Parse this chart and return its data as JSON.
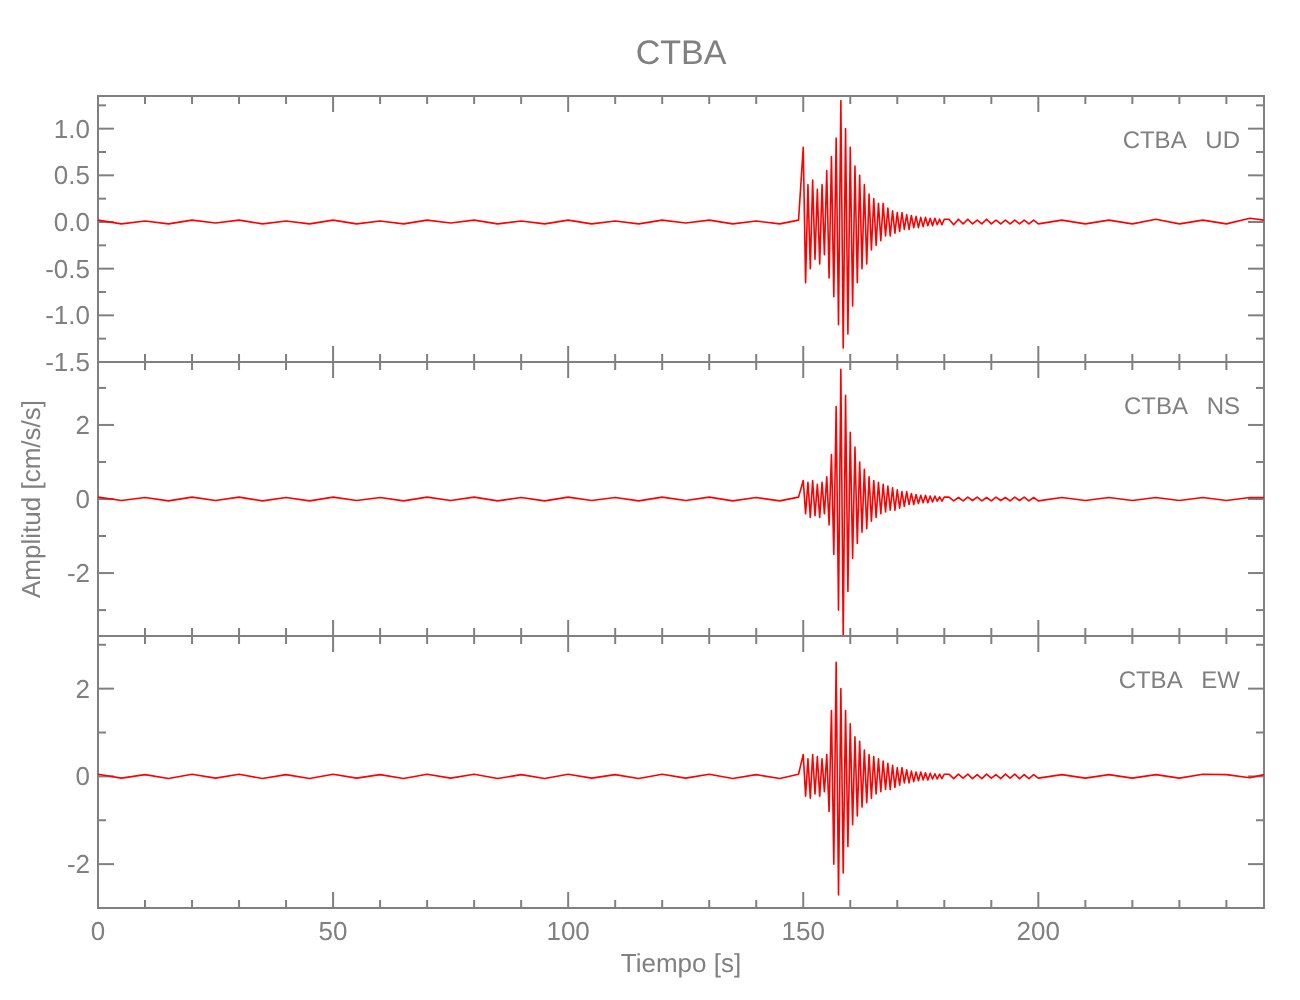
{
  "chart_data": [
    {
      "type": "line",
      "title": "CTBA",
      "tick_labels": "y",
      "xlim": [
        0,
        248
      ],
      "ylim": [
        -1.5,
        1.35
      ],
      "xticks": [
        0,
        {
          "value": 10,
          "label": null
        },
        {
          "value": 20,
          "label": null
        },
        {
          "value": 30,
          "label": null
        },
        {
          "value": 40,
          "label": null
        },
        50,
        {
          "value": 60,
          "label": null
        },
        {
          "value": 70,
          "label": null
        },
        {
          "value": 80,
          "label": null
        },
        {
          "value": 90,
          "label": null
        },
        100,
        {
          "value": 110,
          "label": null
        },
        {
          "value": 120,
          "label": null
        },
        {
          "value": 130,
          "label": null
        },
        {
          "value": 140,
          "label": null
        },
        150,
        {
          "value": 160,
          "label": null
        },
        {
          "value": 170,
          "label": null
        },
        {
          "value": 180,
          "label": null
        },
        {
          "value": 190,
          "label": null
        },
        200,
        {
          "value": 210,
          "label": null
        },
        {
          "value": 220,
          "label": null
        },
        {
          "value": 230,
          "label": null
        },
        {
          "value": 240,
          "label": null
        }
      ],
      "yticks": [
        {
          "value": -1.5,
          "label": "-1.5"
        },
        {
          "value": -1.25,
          "label": null
        },
        {
          "value": -1,
          "label": "-1.0"
        },
        {
          "value": -0.75,
          "label": null
        },
        {
          "value": -0.5,
          "label": "-0.5"
        },
        {
          "value": -0.25,
          "label": null
        },
        {
          "value": 0,
          "label": "0.0"
        },
        {
          "value": 0.25,
          "label": null
        },
        {
          "value": 0.5,
          "label": "0.5"
        },
        {
          "value": 0.75,
          "label": null
        },
        {
          "value": 1,
          "label": "1.0"
        },
        {
          "value": 1.25,
          "label": null
        }
      ],
      "x": [
        0,
        5,
        10,
        15,
        20,
        25,
        30,
        35,
        40,
        45,
        50,
        55,
        60,
        65,
        70,
        75,
        80,
        85,
        90,
        95,
        100,
        105,
        110,
        115,
        120,
        125,
        130,
        135,
        140,
        145,
        149,
        150,
        150.5,
        151,
        151.5,
        152,
        152.5,
        153,
        153.5,
        154,
        154.5,
        155,
        155.5,
        156,
        156.5,
        157,
        157.5,
        158,
        158.5,
        159,
        159.5,
        160,
        160.5,
        161,
        161.5,
        162,
        162.5,
        163,
        163.5,
        164,
        164.5,
        165,
        165.5,
        166,
        166.5,
        167,
        167.5,
        168,
        168.5,
        169,
        169.5,
        170,
        170.5,
        171,
        171.5,
        172,
        172.5,
        173,
        173.5,
        174,
        174.5,
        175,
        175.5,
        176,
        176.5,
        177,
        177.5,
        178,
        178.5,
        179,
        179.5,
        180,
        181,
        182,
        183,
        184,
        185,
        186,
        187,
        188,
        189,
        190,
        191,
        192,
        193,
        194,
        195,
        196,
        197,
        198,
        199,
        200,
        205,
        210,
        215,
        220,
        225,
        230,
        235,
        240,
        245,
        248
      ],
      "series": [
        {
          "name": "CTBA   UD",
          "color": "#ff0000",
          "values": [
            0.02,
            -0.02,
            0.01,
            -0.02,
            0.02,
            -0.01,
            0.02,
            -0.02,
            0.01,
            -0.02,
            0.02,
            -0.02,
            0.01,
            -0.02,
            0.02,
            -0.01,
            0.02,
            -0.02,
            0.01,
            -0.02,
            0.02,
            -0.02,
            0.01,
            -0.02,
            0.02,
            -0.01,
            0.02,
            -0.02,
            0.01,
            -0.02,
            0.02,
            0.8,
            -0.65,
            0.4,
            -0.5,
            0.45,
            -0.4,
            0.35,
            -0.45,
            0.4,
            -0.35,
            0.55,
            -0.6,
            0.7,
            -0.8,
            0.9,
            -1.1,
            1.3,
            -1.35,
            1.0,
            -1.2,
            0.8,
            -0.9,
            0.6,
            -0.65,
            0.5,
            -0.5,
            0.4,
            -0.45,
            0.3,
            -0.3,
            0.25,
            -0.25,
            0.2,
            -0.2,
            0.2,
            -0.15,
            0.15,
            -0.15,
            0.12,
            -0.12,
            0.1,
            -0.1,
            0.1,
            -0.08,
            0.08,
            -0.08,
            0.07,
            -0.06,
            0.06,
            -0.06,
            0.05,
            -0.05,
            0.05,
            -0.04,
            0.04,
            -0.04,
            0.04,
            -0.03,
            0.03,
            -0.03,
            0.03,
            0.03,
            -0.03,
            0.03,
            -0.02,
            0.03,
            -0.02,
            0.02,
            -0.02,
            0.03,
            -0.02,
            0.02,
            -0.02,
            0.02,
            -0.02,
            0.02,
            -0.02,
            0.02,
            -0.02,
            0.02,
            -0.02,
            0.02,
            -0.02,
            0.02,
            -0.02,
            0.03,
            -0.02,
            0.02,
            -0.02,
            0.04,
            0.02
          ]
        }
      ]
    },
    {
      "type": "line",
      "ylabel": "Amplitud [cm/s/s]",
      "tick_labels": "y",
      "xlim": [
        0,
        248
      ],
      "ylim": [
        -3.7,
        3.7
      ],
      "xticks": [
        0,
        {
          "value": 10,
          "label": null
        },
        {
          "value": 20,
          "label": null
        },
        {
          "value": 30,
          "label": null
        },
        {
          "value": 40,
          "label": null
        },
        50,
        {
          "value": 60,
          "label": null
        },
        {
          "value": 70,
          "label": null
        },
        {
          "value": 80,
          "label": null
        },
        {
          "value": 90,
          "label": null
        },
        100,
        {
          "value": 110,
          "label": null
        },
        {
          "value": 120,
          "label": null
        },
        {
          "value": 130,
          "label": null
        },
        {
          "value": 140,
          "label": null
        },
        150,
        {
          "value": 160,
          "label": null
        },
        {
          "value": 170,
          "label": null
        },
        {
          "value": 180,
          "label": null
        },
        {
          "value": 190,
          "label": null
        },
        200,
        {
          "value": 210,
          "label": null
        },
        {
          "value": 220,
          "label": null
        },
        {
          "value": 230,
          "label": null
        },
        {
          "value": 240,
          "label": null
        }
      ],
      "yticks": [
        {
          "value": -3,
          "label": null
        },
        -2,
        {
          "value": -1,
          "label": null
        },
        0,
        {
          "value": 1,
          "label": null
        },
        2,
        {
          "value": 3,
          "label": null
        }
      ],
      "x": [
        0,
        5,
        10,
        15,
        20,
        25,
        30,
        35,
        40,
        45,
        50,
        55,
        60,
        65,
        70,
        75,
        80,
        85,
        90,
        95,
        100,
        105,
        110,
        115,
        120,
        125,
        130,
        135,
        140,
        145,
        149,
        150,
        150.5,
        151,
        151.5,
        152,
        152.5,
        153,
        153.5,
        154,
        154.5,
        155,
        155.5,
        156,
        156.5,
        157,
        157.5,
        158,
        158.5,
        159,
        159.5,
        160,
        160.5,
        161,
        161.5,
        162,
        162.5,
        163,
        163.5,
        164,
        164.5,
        165,
        165.5,
        166,
        166.5,
        167,
        167.5,
        168,
        168.5,
        169,
        169.5,
        170,
        170.5,
        171,
        171.5,
        172,
        172.5,
        173,
        173.5,
        174,
        174.5,
        175,
        175.5,
        176,
        176.5,
        177,
        177.5,
        178,
        178.5,
        179,
        179.5,
        180,
        181,
        182,
        183,
        184,
        185,
        186,
        187,
        188,
        189,
        190,
        191,
        192,
        193,
        194,
        195,
        196,
        197,
        198,
        199,
        200,
        205,
        210,
        215,
        220,
        225,
        230,
        235,
        240,
        245,
        248
      ],
      "series": [
        {
          "name": "CTBA   NS",
          "color": "#ff0000",
          "values": [
            0.05,
            -0.04,
            0.04,
            -0.05,
            0.05,
            -0.04,
            0.05,
            -0.05,
            0.04,
            -0.05,
            0.05,
            -0.04,
            0.04,
            -0.05,
            0.05,
            -0.04,
            0.05,
            -0.05,
            0.04,
            -0.05,
            0.05,
            -0.04,
            0.04,
            -0.05,
            0.05,
            -0.04,
            0.05,
            -0.05,
            0.04,
            -0.05,
            0.05,
            0.5,
            -0.4,
            0.45,
            -0.5,
            0.5,
            -0.45,
            0.4,
            -0.5,
            0.45,
            -0.4,
            0.6,
            -0.7,
            1.2,
            -1.5,
            2.5,
            -3.0,
            3.5,
            -3.7,
            2.8,
            -2.5,
            1.8,
            -1.6,
            1.4,
            -1.2,
            1.0,
            -0.9,
            0.8,
            -0.8,
            0.6,
            -0.6,
            0.5,
            -0.5,
            0.45,
            -0.4,
            0.4,
            -0.35,
            0.35,
            -0.3,
            0.3,
            -0.3,
            0.25,
            -0.25,
            0.2,
            -0.2,
            0.2,
            -0.15,
            0.15,
            -0.15,
            0.12,
            -0.12,
            0.1,
            -0.1,
            0.1,
            -0.1,
            0.08,
            -0.08,
            0.08,
            -0.06,
            0.06,
            -0.06,
            0.05,
            0.05,
            -0.05,
            0.04,
            -0.05,
            0.05,
            -0.04,
            0.05,
            -0.05,
            0.04,
            -0.05,
            0.05,
            -0.04,
            0.04,
            -0.05,
            0.05,
            -0.04,
            0.05,
            -0.05,
            0.04,
            -0.05,
            0.04,
            -0.04,
            0.04,
            -0.04,
            0.04,
            -0.04,
            0.04,
            -0.04,
            0.04,
            0.04
          ]
        }
      ]
    },
    {
      "type": "line",
      "xlabel": "Tiempo [s]",
      "xlim": [
        0,
        248
      ],
      "ylim": [
        -3,
        3.2
      ],
      "xticks": [
        0,
        {
          "value": 10,
          "label": null
        },
        {
          "value": 20,
          "label": null
        },
        {
          "value": 30,
          "label": null
        },
        {
          "value": 40,
          "label": null
        },
        50,
        {
          "value": 60,
          "label": null
        },
        {
          "value": 70,
          "label": null
        },
        {
          "value": 80,
          "label": null
        },
        {
          "value": 90,
          "label": null
        },
        100,
        {
          "value": 110,
          "label": null
        },
        {
          "value": 120,
          "label": null
        },
        {
          "value": 130,
          "label": null
        },
        {
          "value": 140,
          "label": null
        },
        150,
        {
          "value": 160,
          "label": null
        },
        {
          "value": 170,
          "label": null
        },
        {
          "value": 180,
          "label": null
        },
        {
          "value": 190,
          "label": null
        },
        200,
        {
          "value": 210,
          "label": null
        },
        {
          "value": 220,
          "label": null
        },
        {
          "value": 230,
          "label": null
        },
        {
          "value": 240,
          "label": null
        }
      ],
      "yticks": [
        -2,
        {
          "value": -1,
          "label": null
        },
        0,
        {
          "value": 1,
          "label": null
        },
        2,
        {
          "value": 3,
          "label": null
        }
      ],
      "x": [
        0,
        5,
        10,
        15,
        20,
        25,
        30,
        35,
        40,
        45,
        50,
        55,
        60,
        65,
        70,
        75,
        80,
        85,
        90,
        95,
        100,
        105,
        110,
        115,
        120,
        125,
        130,
        135,
        140,
        145,
        149,
        150,
        150.5,
        151,
        151.5,
        152,
        152.5,
        153,
        153.5,
        154,
        154.5,
        155,
        155.5,
        156,
        156.5,
        157,
        157.5,
        158,
        158.5,
        159,
        159.5,
        160,
        160.5,
        161,
        161.5,
        162,
        162.5,
        163,
        163.5,
        164,
        164.5,
        165,
        165.5,
        166,
        166.5,
        167,
        167.5,
        168,
        168.5,
        169,
        169.5,
        170,
        170.5,
        171,
        171.5,
        172,
        172.5,
        173,
        173.5,
        174,
        174.5,
        175,
        175.5,
        176,
        176.5,
        177,
        177.5,
        178,
        178.5,
        179,
        179.5,
        180,
        181,
        182,
        183,
        184,
        185,
        186,
        187,
        188,
        189,
        190,
        191,
        192,
        193,
        194,
        195,
        196,
        197,
        198,
        199,
        200,
        205,
        210,
        215,
        220,
        225,
        230,
        235,
        240,
        245,
        248
      ],
      "series": [
        {
          "name": "CTBA   EW",
          "color": "#ff0000",
          "values": [
            0.05,
            -0.04,
            0.04,
            -0.05,
            0.05,
            -0.04,
            0.05,
            -0.05,
            0.04,
            -0.05,
            0.05,
            -0.04,
            0.04,
            -0.05,
            0.05,
            -0.04,
            0.05,
            -0.05,
            0.04,
            -0.05,
            0.05,
            -0.04,
            0.04,
            -0.05,
            0.05,
            -0.04,
            0.05,
            -0.05,
            0.04,
            -0.05,
            0.05,
            0.5,
            -0.45,
            0.4,
            -0.5,
            0.5,
            -0.4,
            0.45,
            -0.45,
            0.4,
            -0.35,
            0.5,
            -0.8,
            1.5,
            -2.0,
            2.6,
            -2.7,
            2.0,
            -2.2,
            1.5,
            -1.6,
            1.2,
            -1.1,
            0.9,
            -0.9,
            0.8,
            -0.7,
            0.6,
            -0.6,
            0.5,
            -0.5,
            0.45,
            -0.4,
            0.4,
            -0.35,
            0.35,
            -0.3,
            0.3,
            -0.3,
            0.25,
            -0.25,
            0.2,
            -0.2,
            0.2,
            -0.15,
            0.15,
            -0.15,
            0.12,
            -0.12,
            0.1,
            -0.1,
            0.1,
            -0.08,
            0.08,
            -0.08,
            0.07,
            -0.06,
            0.06,
            -0.06,
            0.05,
            -0.05,
            0.05,
            0.05,
            -0.05,
            0.05,
            -0.04,
            0.05,
            -0.05,
            0.04,
            -0.05,
            0.05,
            -0.04,
            0.04,
            -0.05,
            0.05,
            -0.04,
            0.05,
            -0.05,
            0.04,
            -0.05,
            0.04,
            -0.04,
            0.04,
            -0.04,
            0.04,
            -0.04,
            0.04,
            -0.04,
            0.05,
            0.04,
            -0.03,
            0.04
          ]
        }
      ]
    }
  ]
}
